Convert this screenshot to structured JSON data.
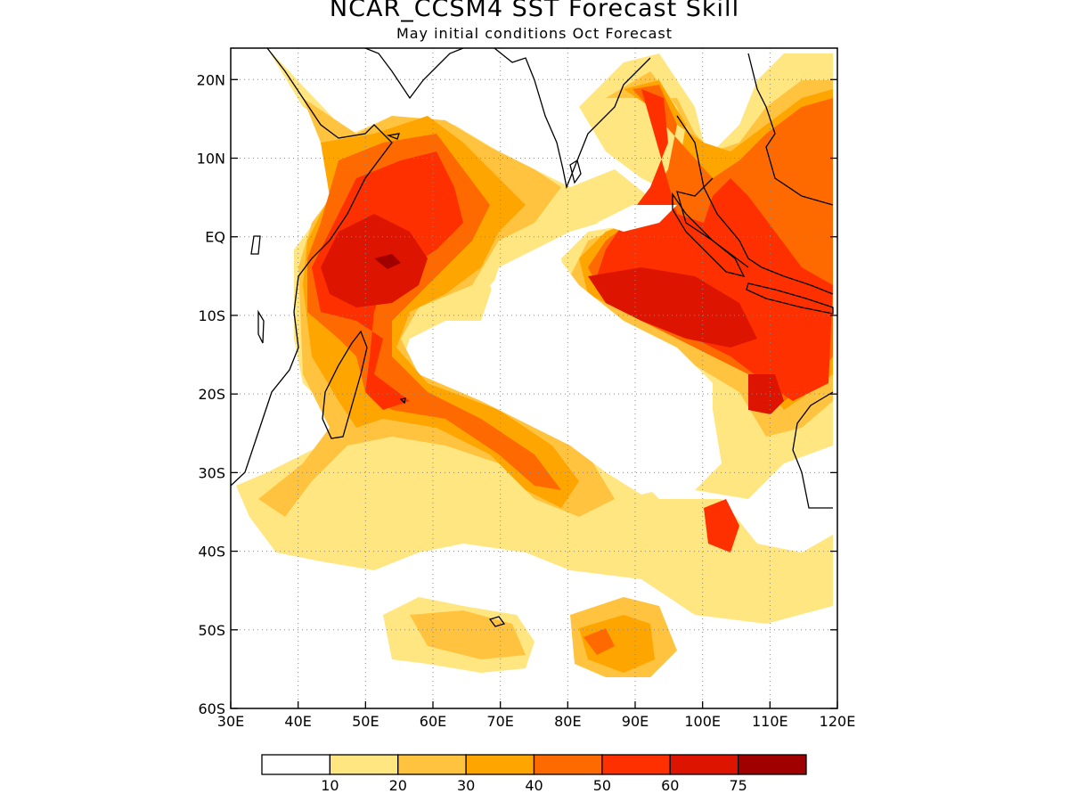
{
  "title": "NCAR_CCSM4 SST Forecast Skill",
  "subtitle": "May initial conditions  Oct Forecast",
  "map": {
    "lon_range": [
      30,
      120
    ],
    "lat_range": [
      -60,
      24
    ],
    "lon_ticks": [
      {
        "v": 30,
        "label": "30E"
      },
      {
        "v": 40,
        "label": "40E"
      },
      {
        "v": 50,
        "label": "50E"
      },
      {
        "v": 60,
        "label": "60E"
      },
      {
        "v": 70,
        "label": "70E"
      },
      {
        "v": 80,
        "label": "80E"
      },
      {
        "v": 90,
        "label": "90E"
      },
      {
        "v": 100,
        "label": "100E"
      },
      {
        "v": 110,
        "label": "110E"
      },
      {
        "v": 120,
        "label": "120E"
      }
    ],
    "lat_ticks": [
      {
        "v": 20,
        "label": "20N"
      },
      {
        "v": 10,
        "label": "10N"
      },
      {
        "v": 0,
        "label": "EQ"
      },
      {
        "v": -10,
        "label": "10S"
      },
      {
        "v": -20,
        "label": "20S"
      },
      {
        "v": -30,
        "label": "30S"
      },
      {
        "v": -40,
        "label": "40S"
      },
      {
        "v": -50,
        "label": "50S"
      },
      {
        "v": -60,
        "label": "60S"
      }
    ],
    "grid": "dotted"
  },
  "colorbar": {
    "colors": [
      "#ffffff",
      "#ffe680",
      "#ffc340",
      "#ffa500",
      "#ff6a00",
      "#ff3000",
      "#dd1500",
      "#a00000"
    ],
    "labels": [
      "10",
      "20",
      "30",
      "40",
      "50",
      "60",
      "75"
    ]
  }
}
